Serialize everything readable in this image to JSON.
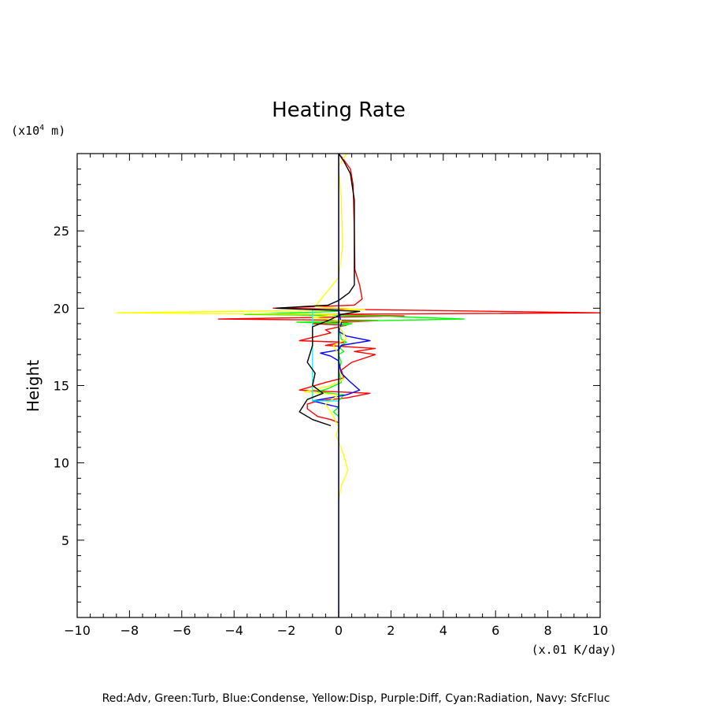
{
  "chart_data": {
    "type": "line",
    "title": "Heating Rate",
    "xlabel": "(x.01 K/day)",
    "ylabel": "Height",
    "yunit_prefix": "(x10",
    "yunit_exp": "4",
    "yunit_suffix": " m)",
    "xlim": [
      -10,
      10
    ],
    "ylim": [
      0,
      30
    ],
    "xticks": [
      -10,
      -8,
      -6,
      -4,
      -2,
      0,
      2,
      4,
      6,
      8,
      10
    ],
    "yticks": [
      5,
      10,
      15,
      20,
      25
    ],
    "grid": false,
    "footnote": "Red:Adv, Green:Turb, Blue:Condense, Yellow:Disp, Purple:Diff, Cyan:Radiation, Navy: SfcFluc",
    "series": [
      {
        "key": "adv",
        "color": "#ff0000",
        "points": [
          [
            0.0,
            30
          ],
          [
            0.2,
            29.6
          ],
          [
            0.45,
            29
          ],
          [
            0.55,
            28
          ],
          [
            0.6,
            25
          ],
          [
            0.62,
            22.5
          ],
          [
            0.8,
            21.5
          ],
          [
            0.9,
            20.6
          ],
          [
            0.6,
            20.2
          ],
          [
            -2.5,
            20.0
          ],
          [
            1.5,
            19.9
          ],
          [
            10,
            19.7
          ],
          [
            -1.5,
            19.6
          ],
          [
            2.5,
            19.5
          ],
          [
            -4.6,
            19.3
          ],
          [
            1.5,
            19.2
          ],
          [
            -1.0,
            19.0
          ],
          [
            0.3,
            18.9
          ],
          [
            -0.5,
            18.6
          ],
          [
            -0.3,
            18.4
          ],
          [
            -1.5,
            17.9
          ],
          [
            0.2,
            17.8
          ],
          [
            -0.5,
            17.6
          ],
          [
            1.4,
            17.4
          ],
          [
            0.6,
            17.2
          ],
          [
            1.4,
            17.0
          ],
          [
            0.5,
            16.5
          ],
          [
            0.1,
            16.0
          ],
          [
            0.2,
            15.5
          ],
          [
            -0.5,
            15.2
          ],
          [
            -1.5,
            14.7
          ],
          [
            1.2,
            14.5
          ],
          [
            0.3,
            14.2
          ],
          [
            -0.8,
            14.0
          ],
          [
            -1.2,
            13.8
          ],
          [
            -1.2,
            13.5
          ],
          [
            -0.8,
            13.0
          ],
          [
            -0.3,
            12.8
          ],
          [
            0.0,
            12.6
          ]
        ]
      },
      {
        "key": "turb",
        "color": "#00ff00",
        "points": [
          [
            0.0,
            19.8
          ],
          [
            -3.6,
            19.6
          ],
          [
            1.5,
            19.5
          ],
          [
            4.8,
            19.3
          ],
          [
            -1.6,
            19.1
          ],
          [
            0.5,
            19.0
          ],
          [
            0.0,
            18.8
          ],
          [
            0.1,
            18.0
          ],
          [
            0.3,
            17.8
          ],
          [
            0.0,
            17.5
          ],
          [
            0.2,
            17.2
          ],
          [
            0.0,
            17.0
          ],
          [
            0.1,
            16.5
          ],
          [
            0.0,
            16.0
          ],
          [
            0.1,
            15.2
          ],
          [
            -0.4,
            14.8
          ],
          [
            -0.8,
            14.6
          ],
          [
            0.2,
            14.4
          ],
          [
            0.0,
            14.0
          ],
          [
            0.0,
            13.6
          ],
          [
            -0.2,
            13.3
          ],
          [
            0.0,
            13.0
          ]
        ]
      },
      {
        "key": "condense",
        "color": "#0000ff",
        "points": [
          [
            0.0,
            19.9
          ],
          [
            0.1,
            19.0
          ],
          [
            0.0,
            18.5
          ],
          [
            0.3,
            18.2
          ],
          [
            1.2,
            17.9
          ],
          [
            0.1,
            17.6
          ],
          [
            0.0,
            17.3
          ],
          [
            -0.7,
            17.1
          ],
          [
            -0.3,
            16.9
          ],
          [
            0.0,
            16.6
          ],
          [
            0.1,
            15.8
          ],
          [
            0.4,
            15.3
          ],
          [
            0.8,
            14.7
          ],
          [
            0.3,
            14.4
          ],
          [
            -1.0,
            14.0
          ],
          [
            -0.5,
            13.8
          ],
          [
            0.0,
            13.6
          ]
        ]
      },
      {
        "key": "disp",
        "color": "#ffff00",
        "points": [
          [
            0.3,
            30
          ],
          [
            0.0,
            29.2
          ],
          [
            0.1,
            27
          ],
          [
            0.15,
            24
          ],
          [
            0.0,
            22
          ],
          [
            -0.9,
            20.1
          ],
          [
            1.0,
            19.9
          ],
          [
            -8.5,
            19.7
          ],
          [
            0.0,
            19.6
          ],
          [
            -1.0,
            19.4
          ],
          [
            0.1,
            19.2
          ],
          [
            0.0,
            18.9
          ],
          [
            0.3,
            18.0
          ],
          [
            -0.2,
            17.6
          ],
          [
            0.0,
            17.0
          ],
          [
            0.0,
            16.0
          ],
          [
            0.2,
            15.4
          ],
          [
            -0.3,
            15.0
          ],
          [
            -1.3,
            14.6
          ],
          [
            0.0,
            14.4
          ],
          [
            -0.5,
            13.8
          ],
          [
            -0.2,
            13.0
          ],
          [
            0.0,
            12.3
          ],
          [
            -0.1,
            11.8
          ],
          [
            0.2,
            10.5
          ],
          [
            0.35,
            9.5
          ],
          [
            0.1,
            8.5
          ],
          [
            0.0,
            7.5
          ]
        ]
      },
      {
        "key": "radiation",
        "color": "#00ffff",
        "points": [
          [
            0.0,
            19.9
          ],
          [
            -1.0,
            19.9
          ],
          [
            -1.0,
            14.0
          ],
          [
            0.0,
            14.0
          ]
        ]
      },
      {
        "key": "total",
        "color": "#000000",
        "points": [
          [
            0.0,
            30
          ],
          [
            0.2,
            29.5
          ],
          [
            0.45,
            28.7
          ],
          [
            0.6,
            27
          ],
          [
            0.6,
            24
          ],
          [
            0.6,
            21.5
          ],
          [
            0.4,
            21.0
          ],
          [
            0.0,
            20.5
          ],
          [
            -0.4,
            20.2
          ],
          [
            -2.4,
            20.0
          ],
          [
            0.8,
            19.8
          ],
          [
            0.1,
            19.6
          ],
          [
            -0.4,
            19.2
          ],
          [
            -1.0,
            18.8
          ],
          [
            -1.0,
            17.6
          ],
          [
            -1.2,
            16.5
          ],
          [
            -0.9,
            15.8
          ],
          [
            -1.0,
            15.0
          ],
          [
            -0.6,
            14.5
          ],
          [
            -1.2,
            14.1
          ],
          [
            -1.5,
            13.3
          ],
          [
            -1.0,
            12.8
          ],
          [
            -0.3,
            12.4
          ]
        ]
      },
      {
        "key": "sfcfluc",
        "color": "#000080",
        "points": [
          [
            0.0,
            0
          ],
          [
            0.0,
            30
          ]
        ]
      }
    ]
  }
}
